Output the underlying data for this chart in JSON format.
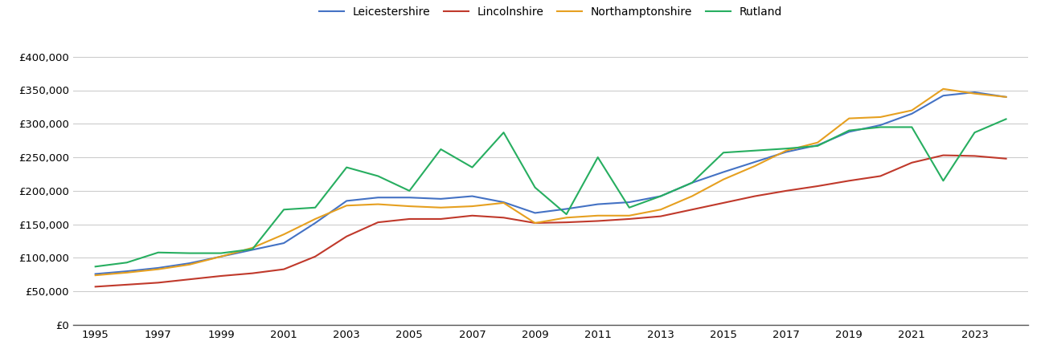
{
  "years": [
    1995,
    1996,
    1997,
    1998,
    1999,
    2000,
    2001,
    2002,
    2003,
    2004,
    2005,
    2006,
    2007,
    2008,
    2009,
    2010,
    2011,
    2012,
    2013,
    2014,
    2015,
    2016,
    2017,
    2018,
    2019,
    2020,
    2021,
    2022,
    2023,
    2024
  ],
  "Leicestershire": [
    76000,
    80000,
    85000,
    92000,
    102000,
    112000,
    122000,
    152000,
    185000,
    190000,
    190000,
    188000,
    192000,
    183000,
    167000,
    173000,
    180000,
    183000,
    192000,
    212000,
    228000,
    243000,
    258000,
    268000,
    288000,
    298000,
    315000,
    342000,
    347000,
    340000
  ],
  "Lincolnshire": [
    57000,
    60000,
    63000,
    68000,
    73000,
    77000,
    83000,
    102000,
    132000,
    153000,
    158000,
    158000,
    163000,
    160000,
    152000,
    153000,
    155000,
    158000,
    162000,
    172000,
    182000,
    192000,
    200000,
    207000,
    215000,
    222000,
    242000,
    253000,
    252000,
    248000
  ],
  "Northamptonshire": [
    74000,
    78000,
    83000,
    90000,
    102000,
    115000,
    135000,
    158000,
    178000,
    180000,
    177000,
    175000,
    177000,
    182000,
    152000,
    160000,
    163000,
    163000,
    172000,
    192000,
    217000,
    237000,
    260000,
    272000,
    308000,
    310000,
    320000,
    352000,
    345000,
    340000
  ],
  "Rutland": [
    87000,
    93000,
    108000,
    107000,
    107000,
    113000,
    172000,
    175000,
    235000,
    222000,
    200000,
    262000,
    235000,
    287000,
    205000,
    165000,
    250000,
    175000,
    192000,
    212000,
    257000,
    260000,
    263000,
    267000,
    290000,
    295000,
    295000,
    215000,
    287000,
    307000
  ],
  "colors": {
    "Leicestershire": "#4472c4",
    "Lincolnshire": "#c0392b",
    "Northamptonshire": "#e6a020",
    "Rutland": "#27ae60"
  },
  "ylim": [
    0,
    420000
  ],
  "yticks": [
    0,
    50000,
    100000,
    150000,
    200000,
    250000,
    300000,
    350000,
    400000
  ],
  "xticks": [
    1995,
    1997,
    1999,
    2001,
    2003,
    2005,
    2007,
    2009,
    2011,
    2013,
    2015,
    2017,
    2019,
    2021,
    2023
  ],
  "background_color": "#ffffff",
  "grid_color": "#cccccc"
}
